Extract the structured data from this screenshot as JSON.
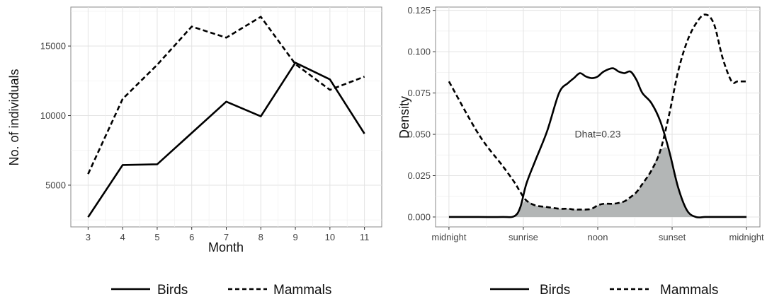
{
  "chart_data": [
    {
      "type": "line",
      "title": "",
      "xlabel": "Month",
      "ylabel": "No. of individuals",
      "x": [
        3,
        4,
        5,
        6,
        7,
        8,
        9,
        10,
        11
      ],
      "x_ticks": [
        "3",
        "4",
        "5",
        "6",
        "7",
        "8",
        "9",
        "10",
        "11"
      ],
      "xlim": [
        2.5,
        11.5
      ],
      "ylim": [
        2000,
        17800
      ],
      "y_ticks": [
        5000,
        10000,
        15000
      ],
      "grid": true,
      "legend_position": "bottom",
      "series": [
        {
          "name": "Birds",
          "style": "solid",
          "values": [
            2700,
            6450,
            6500,
            8750,
            11000,
            9950,
            13800,
            12600,
            8700
          ]
        },
        {
          "name": "Mammals",
          "style": "dashed",
          "values": [
            5800,
            11200,
            13650,
            16400,
            15600,
            17100,
            13700,
            11850,
            12800
          ]
        }
      ]
    },
    {
      "type": "area",
      "title": "",
      "xlabel": "",
      "ylabel": "Density",
      "x_ticks": [
        "midnight",
        "sunrise",
        "noon",
        "sunset",
        "midnight"
      ],
      "x_tick_values": [
        0,
        0.25,
        0.5,
        0.75,
        1.0
      ],
      "xlim": [
        -0.045,
        1.045
      ],
      "ylim": [
        -0.006,
        0.127
      ],
      "y_ticks": [
        "0.000",
        "0.025",
        "0.050",
        "0.075",
        "0.100",
        "0.125"
      ],
      "grid": true,
      "legend_position": "bottom",
      "overlap_fill": "#b3b6b6",
      "annotation": "Dhat=0.23",
      "annotation_at": [
        0.5,
        0.048
      ],
      "x": [
        0,
        0.1,
        0.18,
        0.22,
        0.24,
        0.26,
        0.29,
        0.33,
        0.37,
        0.4,
        0.42,
        0.44,
        0.46,
        0.48,
        0.5,
        0.52,
        0.55,
        0.57,
        0.59,
        0.61,
        0.63,
        0.65,
        0.68,
        0.71,
        0.74,
        0.77,
        0.8,
        0.83,
        0.86,
        0.89,
        0.92,
        0.95,
        0.97,
        1.0
      ],
      "series": [
        {
          "name": "Birds",
          "style": "solid",
          "values": [
            0.0,
            0.0,
            0.0,
            0.0005,
            0.006,
            0.02,
            0.034,
            0.052,
            0.075,
            0.081,
            0.084,
            0.087,
            0.085,
            0.084,
            0.085,
            0.088,
            0.09,
            0.088,
            0.087,
            0.088,
            0.083,
            0.075,
            0.069,
            0.058,
            0.04,
            0.018,
            0.004,
            0.0,
            0.0,
            0.0,
            0.0,
            0.0,
            0.0,
            0.0
          ]
        },
        {
          "name": "Mammals",
          "style": "dashed",
          "values": [
            0.082,
            0.05,
            0.031,
            0.021,
            0.015,
            0.01,
            0.007,
            0.006,
            0.005,
            0.005,
            0.0045,
            0.0045,
            0.0045,
            0.005,
            0.007,
            0.008,
            0.008,
            0.0085,
            0.0095,
            0.012,
            0.015,
            0.02,
            0.028,
            0.04,
            0.062,
            0.088,
            0.106,
            0.117,
            0.1225,
            0.117,
            0.096,
            0.082,
            0.082,
            0.082
          ]
        }
      ]
    }
  ]
}
